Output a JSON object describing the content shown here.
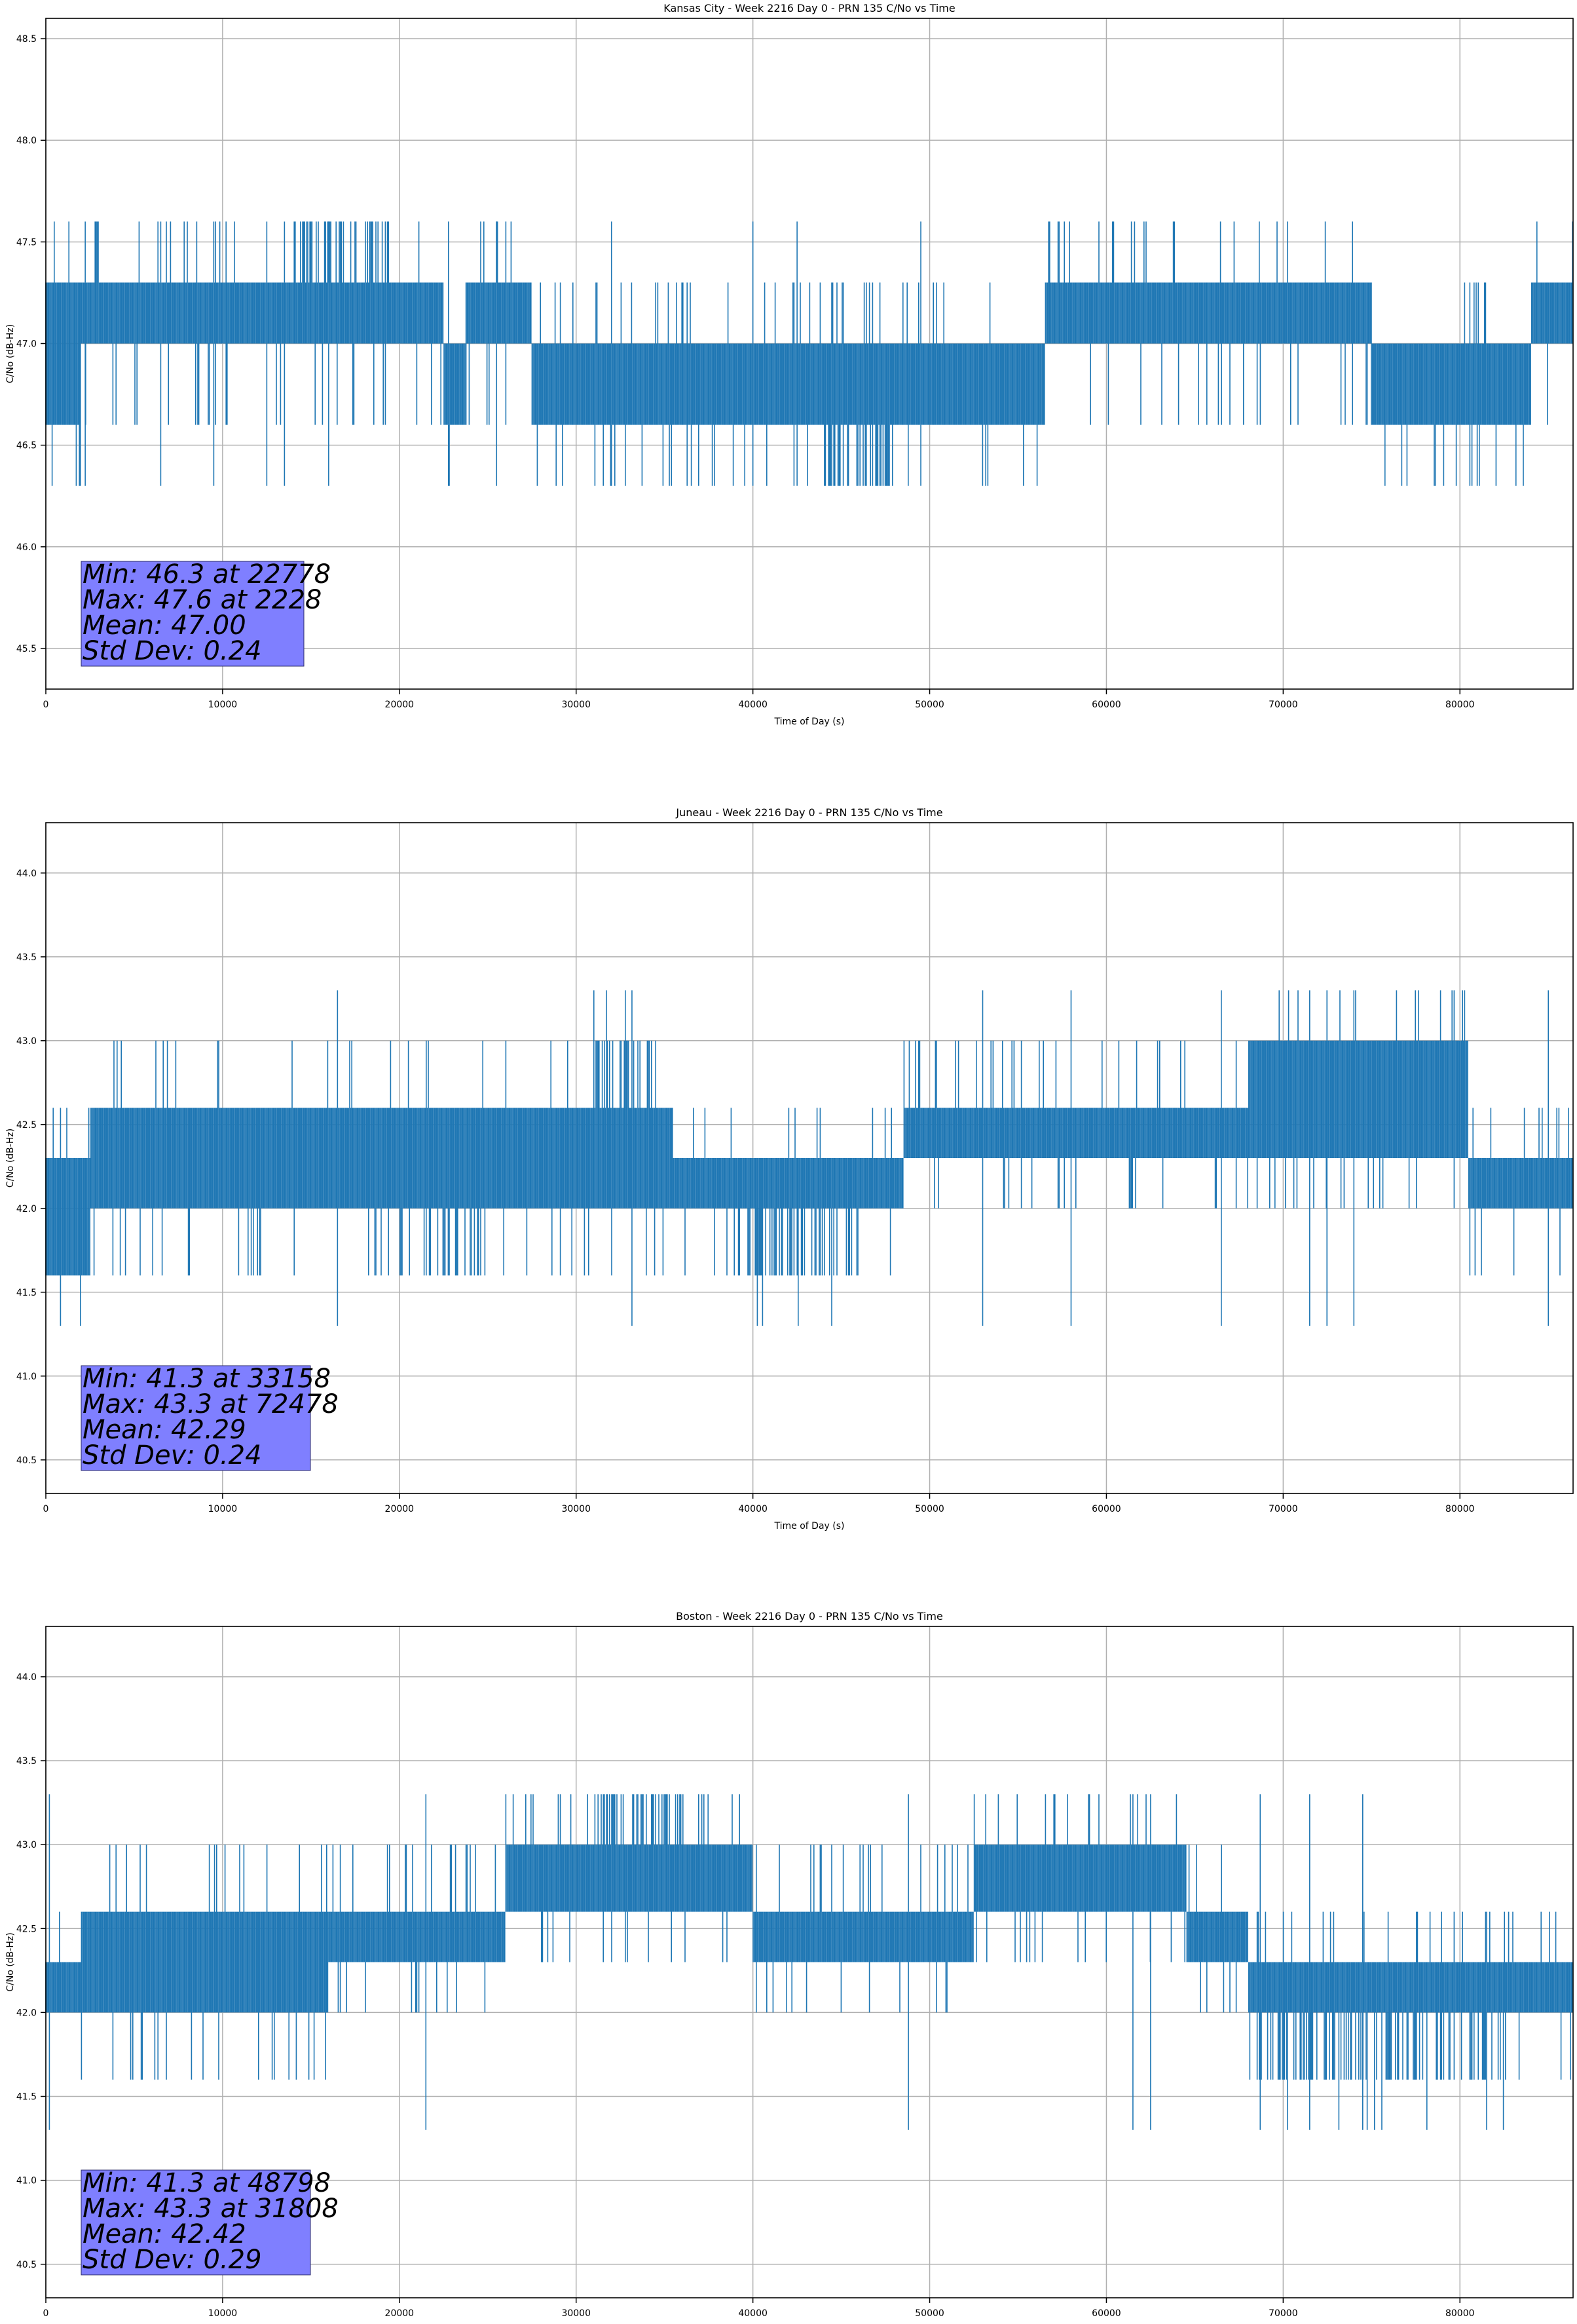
{
  "chart_data": [
    {
      "type": "line",
      "title": "Kansas City - Week 2216 Day 0 - PRN 135 C/No vs Time",
      "xlabel": "Time of Day (s)",
      "ylabel": "C/No (dB-Hz)",
      "xlim": [
        0,
        86400
      ],
      "ylim": [
        45.3,
        48.6
      ],
      "xticks": [
        0,
        10000,
        20000,
        30000,
        40000,
        50000,
        60000,
        70000,
        80000
      ],
      "yticks": [
        "45.5",
        "46.0",
        "46.5",
        "47.0",
        "47.5",
        "48.0",
        "48.5"
      ],
      "grid": true,
      "series": [
        {
          "color": "#1f77b4",
          "levels": [
            46.3,
            46.6,
            47.0,
            47.3,
            47.6
          ],
          "segments": [
            {
              "x": [
                0,
                2000
              ],
              "low": 46.6,
              "high": 47.3
            },
            {
              "x": [
                2000,
                22500
              ],
              "low": 47.0,
              "high": 47.3
            },
            {
              "x": [
                22500,
                23800
              ],
              "low": 46.6,
              "high": 47.0
            },
            {
              "x": [
                23800,
                27500
              ],
              "low": 47.0,
              "high": 47.3
            },
            {
              "x": [
                27500,
                56500
              ],
              "low": 46.6,
              "high": 47.0
            },
            {
              "x": [
                56500,
                75000
              ],
              "low": 47.0,
              "high": 47.3
            },
            {
              "x": [
                75000,
                84000
              ],
              "low": 46.6,
              "high": 47.0
            },
            {
              "x": [
                84000,
                86400
              ],
              "low": 47.0,
              "high": 47.3
            }
          ],
          "bursts": [
            {
              "x": [
                14000,
                19500
              ],
              "to": 47.6
            },
            {
              "x": [
                44000,
                48000
              ],
              "to": 46.3
            }
          ],
          "spikes": [
            2228,
            6500,
            9500,
            12500,
            13500,
            16000,
            25500,
            22778,
            32000,
            40000,
            42500,
            49500
          ]
        }
      ],
      "annotation": [
        "Min: 46.3 at 22778",
        "Max: 47.6 at 2228",
        "Mean: 47.00",
        "Std Dev: 0.24"
      ]
    },
    {
      "type": "line",
      "title": "Juneau - Week 2216 Day 0 - PRN 135 C/No vs Time",
      "xlabel": "Time of Day (s)",
      "ylabel": "C/No (dB-Hz)",
      "xlim": [
        0,
        86400
      ],
      "ylim": [
        40.3,
        44.3
      ],
      "xticks": [
        0,
        10000,
        20000,
        30000,
        40000,
        50000,
        60000,
        70000,
        80000
      ],
      "yticks": [
        "40.5",
        "41.0",
        "41.5",
        "42.0",
        "42.5",
        "43.0",
        "43.5",
        "44.0"
      ],
      "grid": true,
      "series": [
        {
          "color": "#1f77b4",
          "levels": [
            41.3,
            41.6,
            42.0,
            42.3,
            42.6,
            43.0,
            43.3
          ],
          "segments": [
            {
              "x": [
                0,
                2500
              ],
              "low": 41.6,
              "high": 42.3
            },
            {
              "x": [
                2500,
                30000
              ],
              "low": 42.0,
              "high": 42.6
            },
            {
              "x": [
                30000,
                35500
              ],
              "low": 42.0,
              "high": 42.6
            },
            {
              "x": [
                35500,
                48500
              ],
              "low": 42.0,
              "high": 42.3
            },
            {
              "x": [
                48500,
                68000
              ],
              "low": 42.3,
              "high": 42.6
            },
            {
              "x": [
                68000,
                80500
              ],
              "low": 42.3,
              "high": 43.0
            },
            {
              "x": [
                80500,
                86400
              ],
              "low": 42.0,
              "high": 42.3
            }
          ],
          "bursts": [
            {
              "x": [
                21500,
                25000
              ],
              "to": 41.6
            },
            {
              "x": [
                38500,
                46000
              ],
              "to": 41.6
            },
            {
              "x": [
                31000,
                34500
              ],
              "to": 43.0
            }
          ],
          "spikes": [
            16500,
            33158,
            53000,
            58000,
            66500,
            72478,
            74000,
            71500,
            85000
          ]
        }
      ],
      "annotation": [
        "Min: 41.3 at 33158",
        "Max: 43.3 at 72478",
        "Mean: 42.29",
        "Std Dev: 0.24"
      ]
    },
    {
      "type": "line",
      "title": "Boston - Week 2216 Day 0 - PRN 135 C/No vs Time",
      "xlabel": "Time of Day (s)",
      "ylabel": "C/No (dB-Hz)",
      "xlim": [
        0,
        86400
      ],
      "ylim": [
        40.3,
        44.3
      ],
      "xticks": [
        0,
        10000,
        20000,
        30000,
        40000,
        50000,
        60000,
        70000,
        80000
      ],
      "yticks": [
        "40.5",
        "41.0",
        "41.5",
        "42.0",
        "42.5",
        "43.0",
        "43.5",
        "44.0"
      ],
      "grid": true,
      "series": [
        {
          "color": "#1f77b4",
          "levels": [
            41.3,
            41.6,
            42.0,
            42.3,
            42.6,
            43.0,
            43.3
          ],
          "segments": [
            {
              "x": [
                0,
                2000
              ],
              "low": 42.0,
              "high": 42.3
            },
            {
              "x": [
                2000,
                16000
              ],
              "low": 42.0,
              "high": 42.6
            },
            {
              "x": [
                16000,
                26000
              ],
              "low": 42.3,
              "high": 42.6
            },
            {
              "x": [
                26000,
                40000
              ],
              "low": 42.6,
              "high": 43.0
            },
            {
              "x": [
                40000,
                52500
              ],
              "low": 42.3,
              "high": 42.6
            },
            {
              "x": [
                52500,
                64500
              ],
              "low": 42.6,
              "high": 43.0
            },
            {
              "x": [
                64500,
                68000
              ],
              "low": 42.3,
              "high": 42.6
            },
            {
              "x": [
                68000,
                86400
              ],
              "low": 42.0,
              "high": 42.3
            }
          ],
          "bursts": [
            {
              "x": [
                68500,
                82500
              ],
              "to": 41.6
            },
            {
              "x": [
                31000,
                37500
              ],
              "to": 43.3
            }
          ],
          "spikes": [
            200,
            21500,
            48798,
            61500,
            62500,
            68700,
            71500,
            74500
          ]
        }
      ],
      "annotation": [
        "Min: 41.3 at 48798",
        "Max: 43.3 at 31808",
        "Mean: 42.42",
        "Std Dev: 0.29"
      ]
    }
  ]
}
